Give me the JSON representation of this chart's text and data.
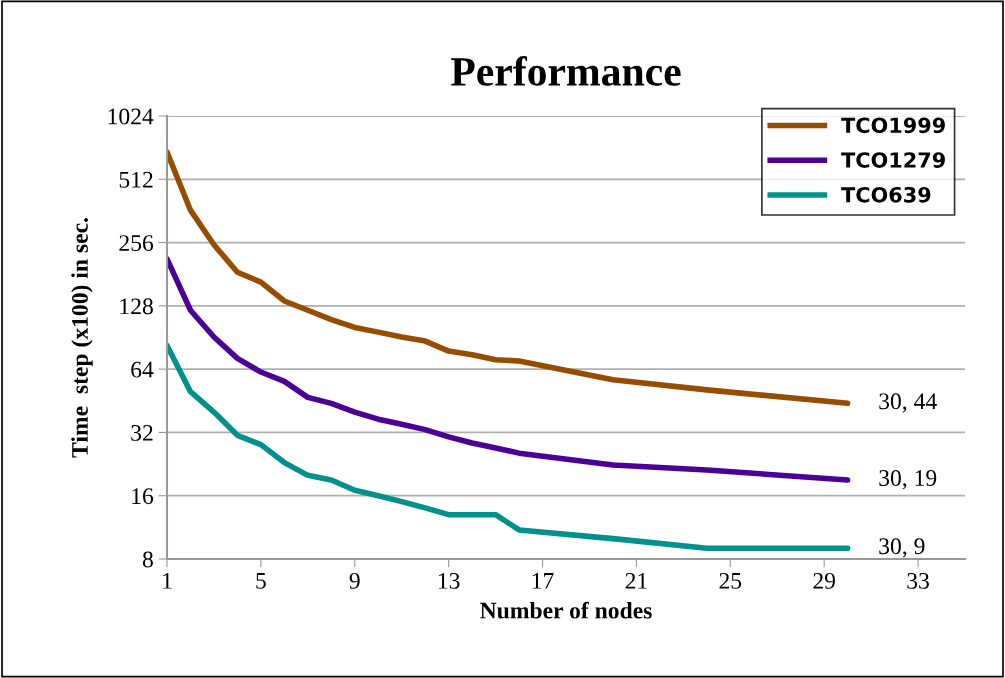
{
  "chart_data": {
    "type": "line",
    "title": "Performance",
    "xlabel": "Number of nodes",
    "ylabel": "Time  step (x100) in sec.",
    "x": [
      1,
      2,
      3,
      4,
      5,
      6,
      7,
      8,
      9,
      10,
      11,
      12,
      13,
      14,
      15,
      16,
      20,
      24,
      30
    ],
    "series": [
      {
        "name": "TCO1999",
        "color": "#974d00",
        "values": [
          690,
          365,
          250,
          185,
          166,
          135,
          122,
          110,
          101,
          96,
          91,
          87,
          78,
          75,
          71,
          70,
          57,
          51,
          44
        ],
        "value_labels": [
          null,
          null,
          null,
          null,
          null,
          null,
          null,
          null,
          null,
          null,
          null,
          null,
          null,
          null,
          null,
          null,
          null,
          null,
          "30, 44"
        ]
      },
      {
        "name": "TCO1279",
        "color": "#4b0096",
        "values": [
          214,
          122,
          91,
          72,
          62,
          56,
          47,
          44,
          40,
          37,
          35,
          33,
          30.5,
          28.5,
          27,
          25.5,
          22.4,
          21.2,
          19
        ],
        "value_labels": [
          null,
          null,
          null,
          null,
          null,
          null,
          null,
          null,
          null,
          null,
          null,
          null,
          null,
          null,
          null,
          null,
          null,
          null,
          "30, 19"
        ]
      },
      {
        "name": "TCO639",
        "color": "#00918c",
        "values": [
          83,
          50,
          40,
          31,
          28,
          23,
          20,
          19,
          17,
          16,
          15,
          14,
          13,
          13,
          13,
          11,
          10,
          9,
          9
        ],
        "value_labels": [
          null,
          null,
          null,
          null,
          null,
          null,
          null,
          null,
          null,
          null,
          null,
          null,
          null,
          null,
          null,
          null,
          null,
          null,
          "30, 9"
        ]
      }
    ],
    "log": "y",
    "xlim": [
      1,
      35
    ],
    "ylim": [
      8,
      1024
    ],
    "xticks": [
      1,
      5,
      9,
      13,
      17,
      21,
      25,
      29,
      33
    ],
    "yticks": [
      8,
      16,
      32,
      64,
      128,
      256,
      512,
      1024
    ],
    "grid": "y",
    "legend": "top right",
    "marker": "none",
    "line_style": "solid"
  }
}
